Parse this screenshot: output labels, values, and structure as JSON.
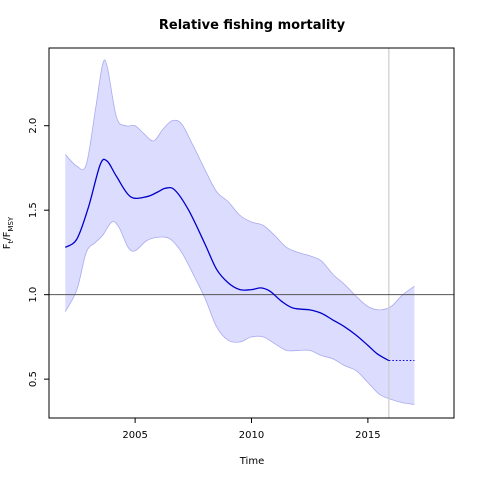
{
  "chart_data": {
    "type": "line",
    "title": "Relative fishing mortality",
    "xlabel": "Time",
    "ylabel_main": "F",
    "ylabel_sub1": "t",
    "ylabel_mid": "/F",
    "ylabel_sub2": "MSY",
    "xlim": [
      2001.3,
      2018.7
    ],
    "ylim": [
      0.27,
      2.46
    ],
    "x_ticks": [
      2005,
      2010,
      2015
    ],
    "y_ticks": [
      0.5,
      1.0,
      1.5,
      2.0
    ],
    "x_tick_labels": [
      "2005",
      "2010",
      "2015"
    ],
    "y_tick_labels": [
      "0.5",
      "1.0",
      "1.5",
      "2.0"
    ],
    "reference_line_y": 1.0,
    "vertical_line_x": 2015.9,
    "colors": {
      "estimate": "#0000cc",
      "band_fill": "#dcdcff",
      "band_edge": "#aaaaee",
      "reference": "#555555",
      "vertical": "#cccccc"
    },
    "series": [
      {
        "values": [
          [
            2002.0,
            1.28
          ],
          [
            2002.5,
            1.33
          ],
          [
            2003.0,
            1.52
          ],
          [
            2003.5,
            1.77
          ],
          [
            2003.8,
            1.79
          ],
          [
            2004.2,
            1.7
          ],
          [
            2004.8,
            1.58
          ],
          [
            2005.5,
            1.58
          ],
          [
            2006.0,
            1.61
          ],
          [
            2006.3,
            1.63
          ],
          [
            2006.7,
            1.62
          ],
          [
            2007.3,
            1.5
          ],
          [
            2008.0,
            1.3
          ],
          [
            2008.5,
            1.15
          ],
          [
            2009.0,
            1.07
          ],
          [
            2009.5,
            1.03
          ],
          [
            2010.0,
            1.03
          ],
          [
            2010.4,
            1.04
          ],
          [
            2010.8,
            1.02
          ],
          [
            2011.3,
            0.96
          ],
          [
            2011.8,
            0.92
          ],
          [
            2012.5,
            0.91
          ],
          [
            2013.0,
            0.89
          ],
          [
            2013.5,
            0.85
          ],
          [
            2014.0,
            0.81
          ],
          [
            2014.5,
            0.76
          ],
          [
            2015.0,
            0.7
          ],
          [
            2015.4,
            0.65
          ],
          [
            2015.9,
            0.61
          ]
        ]
      },
      {
        "line_style": "dotted",
        "values": [
          [
            2015.9,
            0.61
          ],
          [
            2017.0,
            0.61
          ]
        ]
      }
    ],
    "confidence_band": {
      "upper": [
        [
          2002.0,
          1.83
        ],
        [
          2002.5,
          1.76
        ],
        [
          2002.9,
          1.77
        ],
        [
          2003.3,
          2.1
        ],
        [
          2003.6,
          2.36
        ],
        [
          2003.8,
          2.35
        ],
        [
          2004.2,
          2.05
        ],
        [
          2004.6,
          2.0
        ],
        [
          2005.0,
          2.0
        ],
        [
          2005.4,
          1.95
        ],
        [
          2005.8,
          1.91
        ],
        [
          2006.2,
          1.98
        ],
        [
          2006.6,
          2.03
        ],
        [
          2007.0,
          2.01
        ],
        [
          2007.5,
          1.88
        ],
        [
          2008.0,
          1.74
        ],
        [
          2008.5,
          1.61
        ],
        [
          2009.0,
          1.55
        ],
        [
          2009.5,
          1.47
        ],
        [
          2010.0,
          1.43
        ],
        [
          2010.5,
          1.41
        ],
        [
          2011.0,
          1.35
        ],
        [
          2011.5,
          1.28
        ],
        [
          2012.0,
          1.25
        ],
        [
          2012.5,
          1.23
        ],
        [
          2013.0,
          1.2
        ],
        [
          2013.5,
          1.12
        ],
        [
          2014.0,
          1.06
        ],
        [
          2014.5,
          0.99
        ],
        [
          2015.0,
          0.93
        ],
        [
          2015.5,
          0.91
        ],
        [
          2016.0,
          0.93
        ],
        [
          2016.5,
          1.0
        ],
        [
          2017.0,
          1.05
        ]
      ],
      "lower": [
        [
          2002.0,
          0.9
        ],
        [
          2002.5,
          1.03
        ],
        [
          2002.9,
          1.25
        ],
        [
          2003.3,
          1.31
        ],
        [
          2003.6,
          1.35
        ],
        [
          2004.0,
          1.43
        ],
        [
          2004.3,
          1.4
        ],
        [
          2004.7,
          1.28
        ],
        [
          2005.0,
          1.26
        ],
        [
          2005.5,
          1.32
        ],
        [
          2006.0,
          1.34
        ],
        [
          2006.5,
          1.33
        ],
        [
          2007.0,
          1.25
        ],
        [
          2007.5,
          1.12
        ],
        [
          2008.0,
          0.98
        ],
        [
          2008.5,
          0.81
        ],
        [
          2009.0,
          0.73
        ],
        [
          2009.5,
          0.72
        ],
        [
          2010.0,
          0.75
        ],
        [
          2010.5,
          0.75
        ],
        [
          2011.0,
          0.71
        ],
        [
          2011.5,
          0.67
        ],
        [
          2012.0,
          0.67
        ],
        [
          2012.5,
          0.67
        ],
        [
          2013.0,
          0.64
        ],
        [
          2013.5,
          0.62
        ],
        [
          2014.0,
          0.58
        ],
        [
          2014.5,
          0.55
        ],
        [
          2015.0,
          0.48
        ],
        [
          2015.5,
          0.41
        ],
        [
          2016.0,
          0.38
        ],
        [
          2016.5,
          0.36
        ],
        [
          2017.0,
          0.35
        ]
      ]
    },
    "grid": false,
    "legend": "none"
  }
}
